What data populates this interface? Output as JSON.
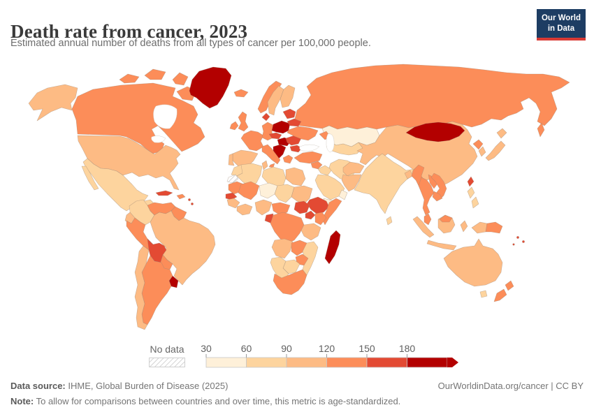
{
  "header": {
    "title": "Death rate from cancer, 2023",
    "subtitle": "Estimated annual number of deaths from all types of cancer per 100,000 people.",
    "logo": {
      "line1": "Our World",
      "line2": "in Data",
      "bg_color": "#1d3d63",
      "accent_color": "#d93a34"
    }
  },
  "legend": {
    "no_data_label": "No data",
    "ticks": [
      "30",
      "60",
      "90",
      "120",
      "150",
      "180"
    ],
    "bucket_ranges": [
      "30-60",
      "60-90",
      "90-120",
      "120-150",
      "150-180",
      "180+"
    ],
    "colors": [
      "#fef0d9",
      "#fdd49e",
      "#fdbb84",
      "#fc8d59",
      "#e34a33",
      "#b30000"
    ]
  },
  "footer": {
    "source_label": "Data source:",
    "source_text": " IHME, Global Burden of Disease (2025)",
    "link_text": "OurWorldinData.org/cancer | CC BY",
    "note_label": "Note:",
    "note_text": " To allow for comparisons between countries and over time, this metric is age-standardized."
  },
  "map": {
    "type": "choropleth-world-map",
    "unit": "cancer deaths per 100,000 people (age-standardized)",
    "year": "2023",
    "ocean_color": "#ffffff",
    "countries": {
      "russia": "120-150",
      "kazakhstan": "30-60",
      "central-asia": "60-90",
      "caucasus": "120-150",
      "china": "90-120",
      "mongolia": "180+",
      "north-korea": "120-150",
      "south-korea": "90-120",
      "japan": "90-120",
      "taiwan": "150-180",
      "turkey": "120-150",
      "syria": "120-150",
      "iraq": "60-90",
      "iran": "60-90",
      "saudi-arabia": "60-90",
      "yemen": "30-60",
      "oman": "30-60",
      "afghanistan": "90-120",
      "pakistan": "90-120",
      "india": "60-90",
      "sri-lanka": "60-90",
      "bangladesh": "90-120",
      "myanmar": "120-150",
      "thailand": "120-150",
      "laos": "120-150",
      "vietnam": "120-150",
      "cambodia": "120-150",
      "malaysia": "120-150",
      "indonesia": "90-120",
      "png": "120-150",
      "philippines": "60-90",
      "iceland": "120-150",
      "norway": "120-150",
      "sweden": "90-120",
      "finland": "90-120",
      "denmark": "150-180",
      "uk": "120-150",
      "ireland": "120-150",
      "france": "120-150",
      "spain": "90-120",
      "portugal": "90-120",
      "germany": "120-150",
      "poland": "180+",
      "czechia": "150-180",
      "slovakia-hungary": "180+",
      "balkans": "180+",
      "italy": "120-150",
      "greece": "120-150",
      "romania": "150-180",
      "bulgaria": "150-180",
      "ukraine": "120-150",
      "belarus": "150-180",
      "baltics": "150-180",
      "morocco": "60-90",
      "western-sahara": "no-data",
      "algeria": "60-90",
      "tunisia": "90-120",
      "libya": "60-90",
      "egypt": "90-120",
      "mauritania": "120-150",
      "senegal": "150-180",
      "mali": "120-150",
      "niger": "30-60",
      "chad": "60-90",
      "sudan": "90-120",
      "ethiopia": "150-180",
      "south-sudan": "150-180",
      "somalia": "120-150",
      "guinea-region": "90-120",
      "ivory-ghana": "90-120",
      "nigeria": "90-120",
      "cameroon-car": "120-150",
      "congo-gabon": "150-180",
      "drc": "120-150",
      "uganda": "150-180",
      "kenya": "120-150",
      "tanzania": "90-120",
      "angola": "90-120",
      "zambia": "120-150",
      "mozambique": "60-90",
      "zimbabwe": "120-150",
      "botswana": "60-90",
      "namibia": "60-90",
      "south-africa": "120-150",
      "madagascar": "180+",
      "canada": "120-150",
      "greenland": "180+",
      "alaska": "90-120",
      "usa": "90-120",
      "mexico": "60-90",
      "guatemala": "60-90",
      "central-america": "120-150",
      "cuba": "150-180",
      "hispaniola": "120-150",
      "caribbean": "150-180",
      "colombia": "60-90",
      "venezuela": "120-150",
      "guyana": "120-150",
      "brazil": "90-120",
      "ecuador": "90-120",
      "peru": "120-150",
      "bolivia": "150-180",
      "paraguay": "120-150",
      "uruguay": "180+",
      "argentina": "120-150",
      "chile": "90-120",
      "australia": "90-120",
      "tasmania": "60-90",
      "new-zealand": "120-150",
      "pacific-islands": "150-180"
    }
  }
}
